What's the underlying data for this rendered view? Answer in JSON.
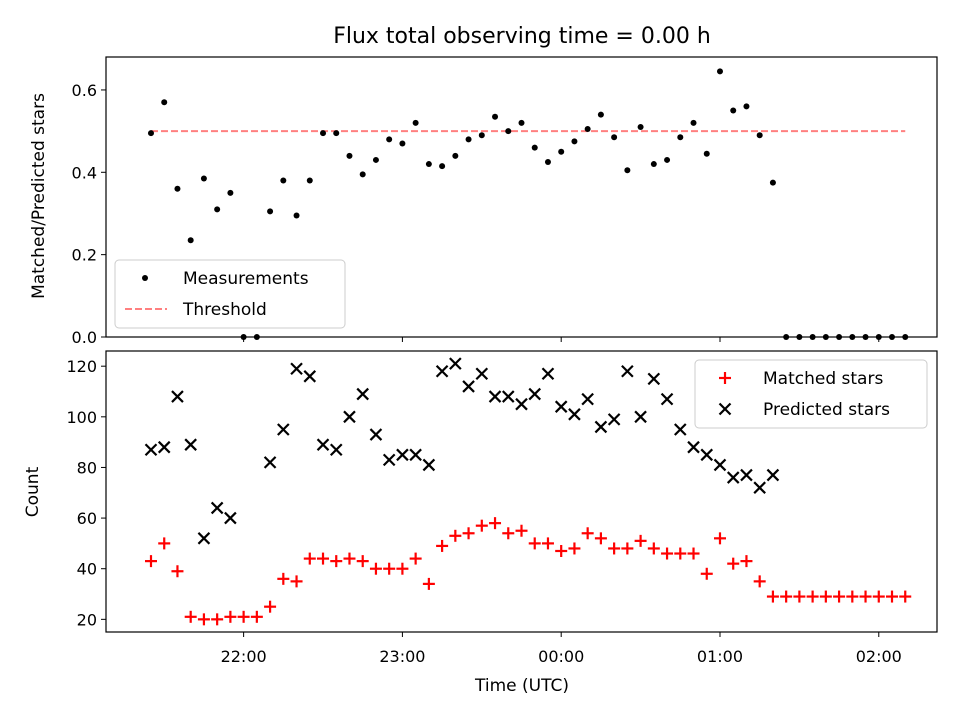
{
  "chart_data": {
    "title": "Flux total observing time = 0.00 h",
    "xlabel": "Time (UTC)",
    "x_tick_labels": [
      "22:00",
      "23:00",
      "00:00",
      "01:00",
      "02:00"
    ],
    "panels": [
      {
        "type": "scatter",
        "ylabel": "Matched/Predicted stars",
        "ylim": [
          0,
          0.68
        ],
        "yticks": [
          "0.0",
          "0.2",
          "0.4",
          "0.6"
        ],
        "ytick_values": [
          0.0,
          0.2,
          0.4,
          0.6
        ],
        "legend": {
          "placement": "lower-left",
          "entries": [
            "Measurements",
            "Threshold"
          ]
        },
        "threshold": 0.5,
        "threshold_color": "#ff8080",
        "series": [
          {
            "name": "Measurements",
            "color": "#000000",
            "x": [
              "21:25",
              "21:30",
              "21:35",
              "21:40",
              "21:45",
              "21:50",
              "21:55",
              "22:00",
              "22:05",
              "22:10",
              "22:15",
              "22:20",
              "22:25",
              "22:30",
              "22:35",
              "22:40",
              "22:45",
              "22:50",
              "22:55",
              "23:00",
              "23:05",
              "23:10",
              "23:15",
              "23:20",
              "23:25",
              "23:30",
              "23:35",
              "23:40",
              "23:45",
              "23:50",
              "23:55",
              "00:00",
              "00:05",
              "00:10",
              "00:15",
              "00:20",
              "00:25",
              "00:30",
              "00:35",
              "00:40",
              "00:45",
              "00:50",
              "00:55",
              "01:00",
              "01:05",
              "01:10",
              "01:15",
              "01:20",
              "01:25",
              "01:30",
              "01:35",
              "01:40",
              "01:45",
              "01:50",
              "01:55",
              "02:00",
              "02:05",
              "02:10"
            ],
            "y": [
              0.495,
              0.57,
              0.36,
              0.235,
              0.385,
              0.31,
              0.35,
              0.0,
              0.0,
              0.305,
              0.38,
              0.295,
              0.38,
              0.495,
              0.495,
              0.44,
              0.395,
              0.43,
              0.48,
              0.47,
              0.52,
              0.42,
              0.415,
              0.44,
              0.48,
              0.49,
              0.535,
              0.5,
              0.52,
              0.46,
              0.425,
              0.45,
              0.475,
              0.505,
              0.54,
              0.485,
              0.405,
              0.51,
              0.42,
              0.43,
              0.485,
              0.52,
              0.445,
              0.645,
              0.55,
              0.56,
              0.49,
              0.375,
              0.0,
              0.0,
              0.0,
              0.0,
              0.0,
              0.0,
              0.0,
              0.0,
              0.0,
              0.0
            ]
          }
        ]
      },
      {
        "type": "scatter",
        "ylabel": "Count",
        "ylim": [
          15,
          126
        ],
        "yticks": [
          "20",
          "40",
          "60",
          "80",
          "100",
          "120"
        ],
        "ytick_values": [
          20,
          40,
          60,
          80,
          100,
          120
        ],
        "legend": {
          "placement": "top-right",
          "entries": [
            "Matched stars",
            "Predicted stars"
          ]
        },
        "series": [
          {
            "name": "Matched stars",
            "marker": "plus",
            "color": "#ff0000",
            "x": [
              "21:25",
              "21:30",
              "21:35",
              "21:40",
              "21:45",
              "21:50",
              "21:55",
              "22:00",
              "22:05",
              "22:10",
              "22:15",
              "22:20",
              "22:25",
              "22:30",
              "22:35",
              "22:40",
              "22:45",
              "22:50",
              "22:55",
              "23:00",
              "23:05",
              "23:10",
              "23:15",
              "23:20",
              "23:25",
              "23:30",
              "23:35",
              "23:40",
              "23:45",
              "23:50",
              "23:55",
              "00:00",
              "00:05",
              "00:10",
              "00:15",
              "00:20",
              "00:25",
              "00:30",
              "00:35",
              "00:40",
              "00:45",
              "00:50",
              "00:55",
              "01:00",
              "01:05",
              "01:10",
              "01:15",
              "01:20",
              "01:25",
              "01:30",
              "01:35",
              "01:40",
              "01:45",
              "01:50",
              "01:55",
              "02:00",
              "02:05",
              "02:10"
            ],
            "y": [
              43,
              50,
              39,
              21,
              20,
              20,
              21,
              21,
              21,
              25,
              36,
              35,
              44,
              44,
              43,
              44,
              43,
              40,
              40,
              40,
              44,
              34,
              49,
              53,
              54,
              57,
              58,
              54,
              55,
              50,
              50,
              47,
              48,
              54,
              52,
              48,
              48,
              51,
              48,
              46,
              46,
              46,
              38,
              52,
              42,
              43,
              35,
              29,
              29,
              29,
              29,
              29,
              29,
              29,
              29,
              29,
              29,
              29
            ]
          },
          {
            "name": "Predicted stars",
            "marker": "x",
            "color": "#000000",
            "x": [
              "21:25",
              "21:30",
              "21:35",
              "21:40",
              "21:45",
              "21:50",
              "21:55",
              "22:10",
              "22:15",
              "22:20",
              "22:25",
              "22:30",
              "22:35",
              "22:40",
              "22:45",
              "22:50",
              "22:55",
              "23:00",
              "23:05",
              "23:10",
              "23:15",
              "23:20",
              "23:25",
              "23:30",
              "23:35",
              "23:40",
              "23:45",
              "23:50",
              "23:55",
              "00:00",
              "00:05",
              "00:10",
              "00:15",
              "00:20",
              "00:25",
              "00:30",
              "00:35",
              "00:40",
              "00:45",
              "00:50",
              "00:55",
              "01:00",
              "01:05",
              "01:10",
              "01:15",
              "01:20"
            ],
            "y": [
              87,
              88,
              108,
              89,
              52,
              64,
              60,
              82,
              95,
              119,
              116,
              89,
              87,
              100,
              109,
              93,
              83,
              85,
              85,
              81,
              118,
              121,
              112,
              117,
              108,
              108,
              105,
              109,
              117,
              104,
              101,
              107,
              96,
              99,
              118,
              100,
              115,
              107,
              95,
              88,
              85,
              81,
              76,
              77,
              72,
              77
            ]
          }
        ]
      }
    ]
  }
}
